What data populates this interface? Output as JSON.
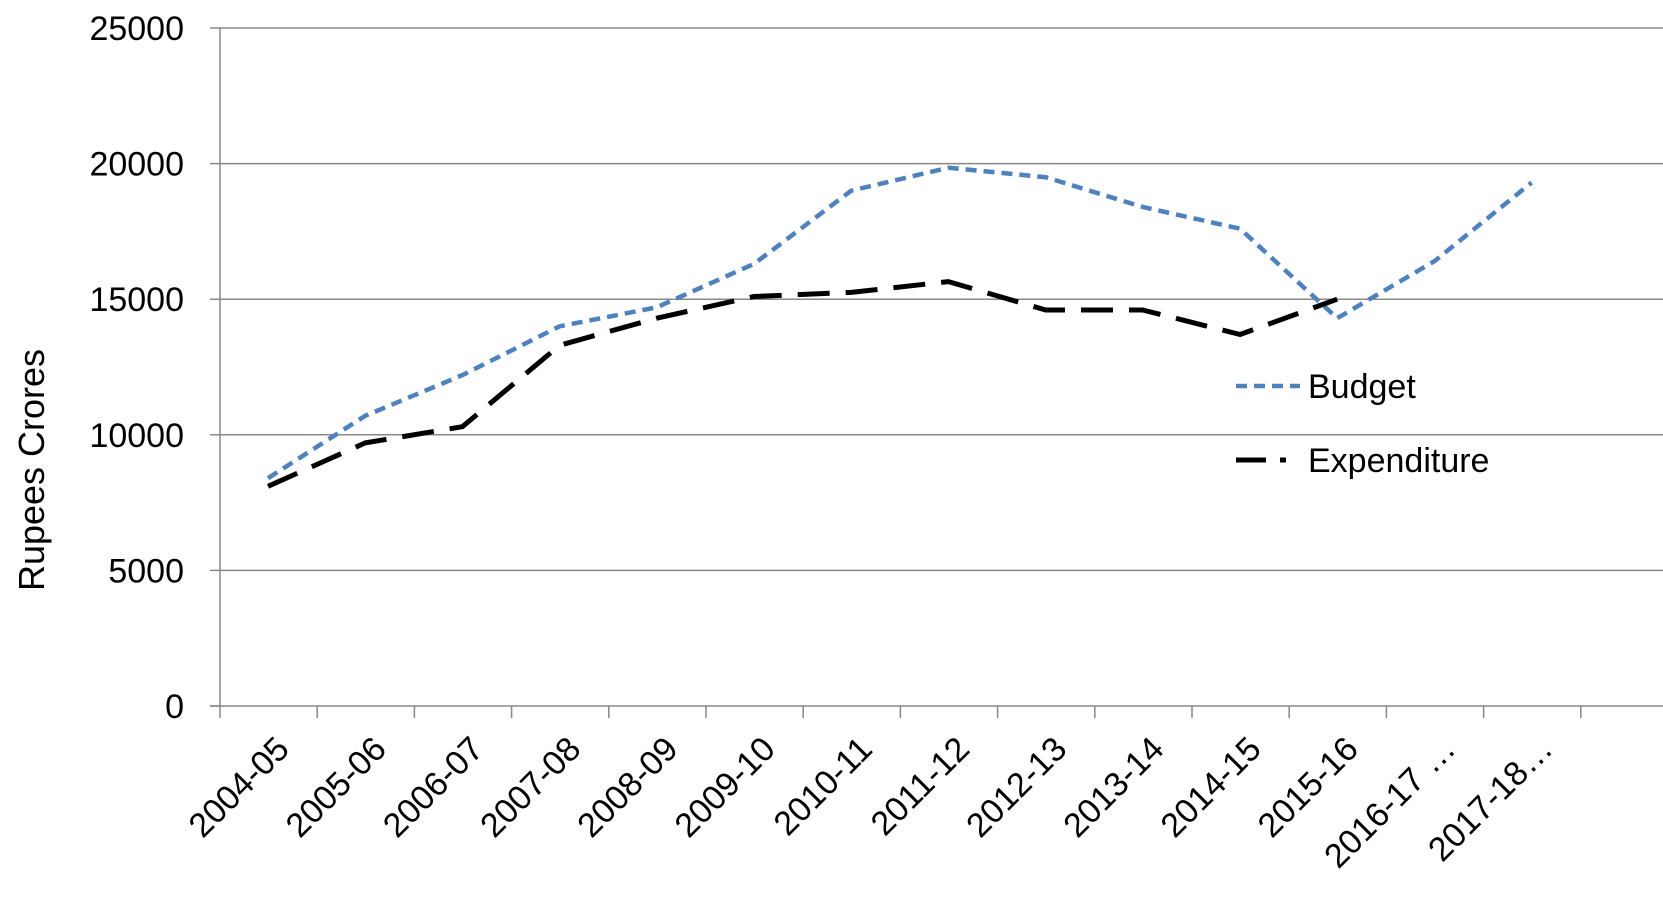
{
  "chart_data": {
    "type": "line",
    "title": "",
    "xlabel": "",
    "ylabel": "Rupees Crores",
    "ylim": [
      0,
      25000
    ],
    "yticks": [
      0,
      5000,
      10000,
      15000,
      20000,
      25000
    ],
    "grid": true,
    "legend_position": "right",
    "categories": [
      "2004-05",
      "2005-06",
      "2006-07",
      "2007-08",
      "2008-09",
      "2009-10",
      "2010-11",
      "2011-12",
      "2012-13",
      "2013-14",
      "2014-15",
      "2015-16",
      "2016-17 …",
      "2017-18…"
    ],
    "series": [
      {
        "name": "Budget",
        "color": "#4f81bd",
        "dash": "dotted",
        "values": [
          8400,
          10700,
          12200,
          14000,
          14700,
          16300,
          19000,
          19850,
          19500,
          18400,
          17600,
          14300,
          16400,
          19300
        ]
      },
      {
        "name": "Expenditure",
        "color": "#000000",
        "dash": "long-dash",
        "values": [
          8100,
          9700,
          10300,
          13300,
          14300,
          15100,
          15250,
          15650,
          14600,
          14600,
          13700,
          15000,
          null,
          null
        ]
      }
    ]
  }
}
